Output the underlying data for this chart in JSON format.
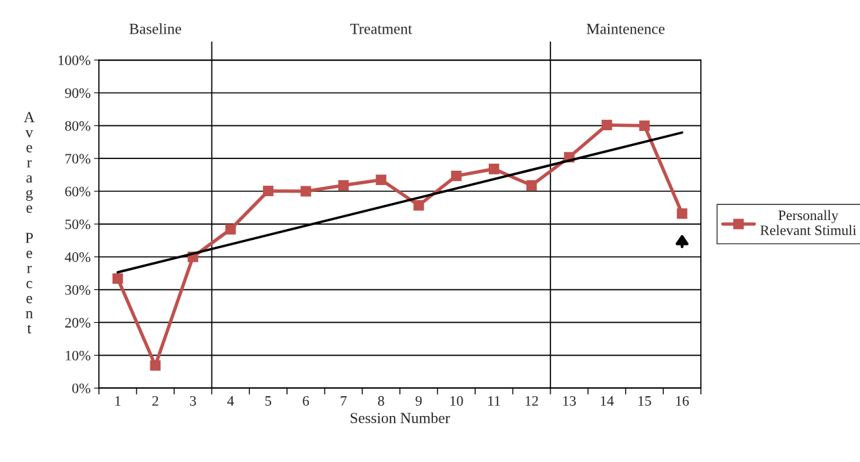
{
  "chart_data": {
    "type": "line",
    "xlabel": "Session Number",
    "ylabel": "Average Percent",
    "x": [
      1,
      2,
      3,
      4,
      5,
      6,
      7,
      8,
      9,
      10,
      11,
      12,
      13,
      14,
      15,
      16
    ],
    "xlim": [
      0.5,
      16.5
    ],
    "xticks": [
      1,
      2,
      3,
      4,
      5,
      6,
      7,
      8,
      9,
      10,
      11,
      12,
      13,
      14,
      15,
      16
    ],
    "ylim": [
      0,
      100
    ],
    "yticks": [
      {
        "value": 0,
        "label": "0%"
      },
      {
        "value": 10,
        "label": "10%"
      },
      {
        "value": 20,
        "label": "20%"
      },
      {
        "value": 30,
        "label": "30%"
      },
      {
        "value": 40,
        "label": "40%"
      },
      {
        "value": 50,
        "label": "50%"
      },
      {
        "value": 60,
        "label": "60%"
      },
      {
        "value": 70,
        "label": "70%"
      },
      {
        "value": 80,
        "label": "80%"
      },
      {
        "value": 90,
        "label": "90%"
      },
      {
        "value": 100,
        "label": "100%"
      }
    ],
    "series": [
      {
        "name": "Personally\nRelevant Stimuli",
        "color": "#c0504d",
        "marker": "square",
        "values": [
          33.4,
          6.9,
          40,
          48.4,
          60.1,
          60,
          61.8,
          63.5,
          55.7,
          64.7,
          66.8,
          61.8,
          70.4,
          80.2,
          80,
          53.2
        ]
      },
      {
        "type": "line",
        "color": "#000000",
        "marker": "none",
        "x": [
          1,
          16
        ],
        "values": [
          35.3,
          77.9
        ]
      }
    ],
    "ref_lines": [
      {
        "axis": "x",
        "value": 3.5,
        "color": "#000000"
      },
      {
        "axis": "x",
        "value": 12.5,
        "color": "#000000"
      }
    ],
    "annotations": [
      "Baseline",
      "Treatment",
      "Maintenence"
    ],
    "grid": "y",
    "legend": "right"
  }
}
